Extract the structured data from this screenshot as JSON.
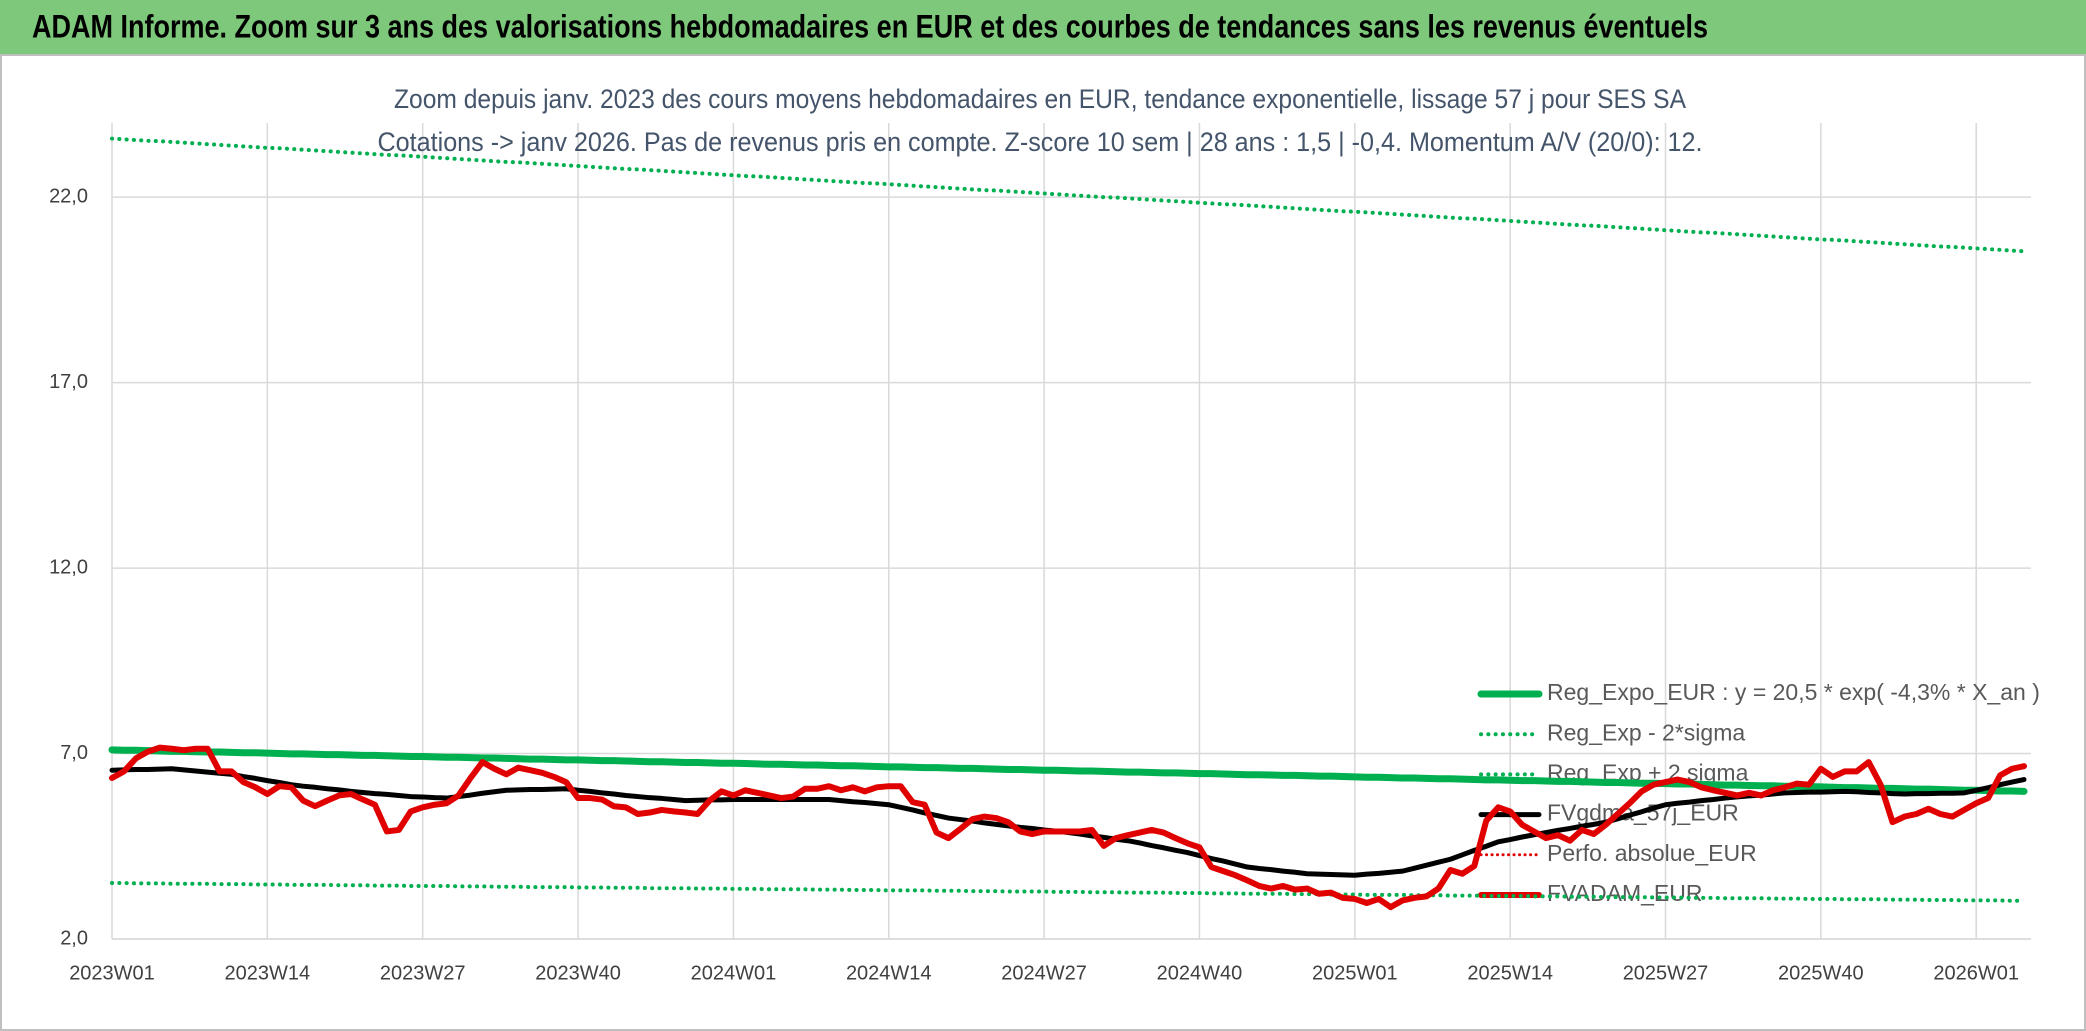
{
  "header": {
    "title": "ADAM Informe. Zoom sur 3 ans des valorisations hebdomadaires en EUR et des courbes de tendances sans les revenus éventuels"
  },
  "chart_data": {
    "type": "line",
    "title": "Zoom depuis janv. 2023 des cours moyens hebdomadaires en EUR, tendance exponentielle, lissage 57 j pour SES SA",
    "subtitle": "Cotations -> janv 2026. Pas de revenus pris en compte. Z-score 10 sem | 28 ans : 1,5 | -0,4. Momentum A/V (20/0): 12.",
    "categories": [
      "2023W01",
      null,
      null,
      null,
      null,
      null,
      null,
      null,
      null,
      null,
      null,
      null,
      null,
      "2023W14",
      null,
      null,
      null,
      null,
      null,
      null,
      null,
      null,
      null,
      null,
      null,
      null,
      "2023W27",
      null,
      null,
      null,
      null,
      null,
      null,
      null,
      null,
      null,
      null,
      null,
      null,
      "2023W40",
      null,
      null,
      null,
      null,
      null,
      null,
      null,
      null,
      null,
      null,
      null,
      null,
      "2024W01",
      null,
      null,
      null,
      null,
      null,
      null,
      null,
      null,
      null,
      null,
      null,
      null,
      "2024W14",
      null,
      null,
      null,
      null,
      null,
      null,
      null,
      null,
      null,
      null,
      null,
      null,
      "2024W27",
      null,
      null,
      null,
      null,
      null,
      null,
      null,
      null,
      null,
      null,
      null,
      null,
      "2024W40",
      null,
      null,
      null,
      null,
      null,
      null,
      null,
      null,
      null,
      null,
      null,
      null,
      "2025W01",
      null,
      null,
      null,
      null,
      null,
      null,
      null,
      null,
      null,
      null,
      null,
      null,
      "2025W14",
      null,
      null,
      null,
      null,
      null,
      null,
      null,
      null,
      null,
      null,
      null,
      null,
      "2025W27",
      null,
      null,
      null,
      null,
      null,
      null,
      null,
      null,
      null,
      null,
      null,
      null,
      "2025W40",
      null,
      null,
      null,
      null,
      null,
      null,
      null,
      null,
      null,
      null,
      null,
      null,
      "2026W01",
      null,
      null,
      null,
      null
    ],
    "ylim": [
      2,
      24
    ],
    "yticks": [
      {
        "value": 2,
        "label": "2,0"
      },
      {
        "value": 7,
        "label": "7,0"
      },
      {
        "value": 12,
        "label": "12,0"
      },
      {
        "value": 17,
        "label": "17,0"
      },
      {
        "value": 22,
        "label": "22,0"
      }
    ],
    "grid": true,
    "legend": "lower right",
    "series": [
      {
        "name": "Reg_Expo_EUR : y = 20,5 * exp( -4,3% *  X_an )",
        "color": "#00b050",
        "style": "solid",
        "width": 7,
        "values": [
          7.1,
          7.09,
          7.09,
          7.08,
          7.07,
          7.06,
          7.06,
          7.05,
          7.04,
          7.04,
          7.03,
          7.02,
          7.02,
          7.01,
          7.0,
          6.99,
          6.99,
          6.98,
          6.97,
          6.97,
          6.96,
          6.95,
          6.95,
          6.94,
          6.93,
          6.92,
          6.92,
          6.91,
          6.9,
          6.9,
          6.89,
          6.88,
          6.88,
          6.87,
          6.86,
          6.85,
          6.85,
          6.84,
          6.83,
          6.83,
          6.82,
          6.81,
          6.81,
          6.8,
          6.79,
          6.78,
          6.78,
          6.77,
          6.76,
          6.76,
          6.75,
          6.74,
          6.74,
          6.73,
          6.72,
          6.71,
          6.71,
          6.7,
          6.69,
          6.69,
          6.68,
          6.67,
          6.67,
          6.66,
          6.65,
          6.64,
          6.64,
          6.63,
          6.62,
          6.62,
          6.61,
          6.6,
          6.6,
          6.59,
          6.58,
          6.57,
          6.57,
          6.56,
          6.55,
          6.55,
          6.54,
          6.53,
          6.53,
          6.52,
          6.51,
          6.5,
          6.5,
          6.49,
          6.48,
          6.48,
          6.47,
          6.46,
          6.46,
          6.45,
          6.44,
          6.43,
          6.43,
          6.42,
          6.41,
          6.41,
          6.4,
          6.39,
          6.39,
          6.38,
          6.37,
          6.36,
          6.36,
          6.35,
          6.34,
          6.34,
          6.33,
          6.32,
          6.32,
          6.31,
          6.3,
          6.29,
          6.29,
          6.28,
          6.27,
          6.27,
          6.26,
          6.25,
          6.25,
          6.24,
          6.23,
          6.22,
          6.22,
          6.21,
          6.2,
          6.2,
          6.19,
          6.18,
          6.18,
          6.17,
          6.16,
          6.15,
          6.15,
          6.14,
          6.13,
          6.13,
          6.12,
          6.11,
          6.11,
          6.1,
          6.09,
          6.08,
          6.08,
          6.07,
          6.06,
          6.06,
          6.05,
          6.04,
          6.04,
          6.03,
          6.02,
          6.01,
          6.01,
          6.0,
          5.99,
          5.99,
          5.98
        ]
      },
      {
        "name": "Reg_Exp - 2*sigma",
        "color": "#00b050",
        "style": "dotted",
        "width": 4,
        "values": [
          3.51,
          3.51,
          3.5,
          3.5,
          3.5,
          3.49,
          3.49,
          3.49,
          3.49,
          3.48,
          3.48,
          3.48,
          3.47,
          3.47,
          3.47,
          3.46,
          3.46,
          3.46,
          3.46,
          3.45,
          3.45,
          3.45,
          3.44,
          3.44,
          3.44,
          3.43,
          3.43,
          3.43,
          3.43,
          3.42,
          3.42,
          3.42,
          3.41,
          3.41,
          3.41,
          3.4,
          3.4,
          3.4,
          3.4,
          3.39,
          3.39,
          3.39,
          3.38,
          3.38,
          3.38,
          3.37,
          3.37,
          3.37,
          3.37,
          3.36,
          3.36,
          3.36,
          3.35,
          3.35,
          3.35,
          3.34,
          3.34,
          3.34,
          3.34,
          3.33,
          3.33,
          3.33,
          3.32,
          3.32,
          3.32,
          3.31,
          3.31,
          3.31,
          3.31,
          3.3,
          3.3,
          3.3,
          3.29,
          3.29,
          3.29,
          3.28,
          3.28,
          3.28,
          3.28,
          3.27,
          3.27,
          3.27,
          3.26,
          3.26,
          3.26,
          3.25,
          3.25,
          3.25,
          3.25,
          3.24,
          3.24,
          3.24,
          3.23,
          3.23,
          3.23,
          3.22,
          3.22,
          3.22,
          3.22,
          3.21,
          3.21,
          3.21,
          3.2,
          3.2,
          3.2,
          3.19,
          3.19,
          3.19,
          3.19,
          3.18,
          3.18,
          3.18,
          3.17,
          3.17,
          3.17,
          3.16,
          3.16,
          3.16,
          3.16,
          3.15,
          3.15,
          3.15,
          3.14,
          3.14,
          3.14,
          3.13,
          3.13,
          3.13,
          3.13,
          3.12,
          3.12,
          3.12,
          3.11,
          3.11,
          3.11,
          3.1,
          3.1,
          3.1,
          3.1,
          3.09,
          3.09,
          3.09,
          3.08,
          3.08,
          3.08,
          3.07,
          3.07,
          3.07,
          3.07,
          3.06,
          3.06,
          3.06,
          3.05,
          3.05,
          3.05,
          3.04,
          3.04,
          3.04,
          3.04,
          3.03,
          3.03
        ]
      },
      {
        "name": "Reg_Exp + 2 sigma",
        "color": "#00b050",
        "style": "dotted",
        "width": 4,
        "values": [
          23.58,
          23.56,
          23.54,
          23.52,
          23.51,
          23.49,
          23.47,
          23.45,
          23.43,
          23.41,
          23.39,
          23.37,
          23.35,
          23.33,
          23.32,
          23.3,
          23.28,
          23.26,
          23.24,
          23.22,
          23.2,
          23.18,
          23.16,
          23.14,
          23.13,
          23.11,
          23.09,
          23.07,
          23.05,
          23.03,
          23.01,
          22.99,
          22.97,
          22.95,
          22.94,
          22.92,
          22.9,
          22.88,
          22.86,
          22.84,
          22.82,
          22.8,
          22.78,
          22.76,
          22.75,
          22.73,
          22.71,
          22.69,
          22.67,
          22.65,
          22.63,
          22.61,
          22.59,
          22.57,
          22.56,
          22.54,
          22.52,
          22.5,
          22.48,
          22.46,
          22.44,
          22.42,
          22.4,
          22.38,
          22.37,
          22.35,
          22.33,
          22.31,
          22.29,
          22.27,
          22.25,
          22.23,
          22.21,
          22.19,
          22.18,
          22.16,
          22.14,
          22.12,
          22.1,
          22.08,
          22.06,
          22.04,
          22.02,
          22.0,
          21.99,
          21.97,
          21.95,
          21.93,
          21.91,
          21.89,
          21.87,
          21.85,
          21.83,
          21.81,
          21.8,
          21.78,
          21.76,
          21.74,
          21.72,
          21.7,
          21.68,
          21.66,
          21.64,
          21.62,
          21.61,
          21.59,
          21.57,
          21.55,
          21.53,
          21.51,
          21.49,
          21.47,
          21.45,
          21.43,
          21.42,
          21.4,
          21.38,
          21.36,
          21.34,
          21.32,
          21.3,
          21.28,
          21.26,
          21.24,
          21.23,
          21.21,
          21.19,
          21.17,
          21.15,
          21.13,
          21.11,
          21.09,
          21.07,
          21.05,
          21.04,
          21.02,
          21.0,
          20.98,
          20.96,
          20.94,
          20.92,
          20.9,
          20.88,
          20.86,
          20.85,
          20.83,
          20.81,
          20.79,
          20.77,
          20.75,
          20.73,
          20.71,
          20.69,
          20.67,
          20.66,
          20.64,
          20.62,
          20.6,
          20.58,
          20.56,
          20.54
        ]
      },
      {
        "name": "FVgdma_57j_EUR",
        "color": "#000000",
        "style": "solid",
        "width": 5,
        "values": [
          6.55,
          6.56,
          6.57,
          6.57,
          6.58,
          6.59,
          6.56,
          6.53,
          6.5,
          6.47,
          6.44,
          6.38,
          6.33,
          6.27,
          6.22,
          6.16,
          6.12,
          6.09,
          6.05,
          6.02,
          5.98,
          5.95,
          5.92,
          5.9,
          5.87,
          5.84,
          5.83,
          5.81,
          5.8,
          5.84,
          5.88,
          5.93,
          5.97,
          6.01,
          6.02,
          6.03,
          6.03,
          6.04,
          6.05,
          6.01,
          5.98,
          5.94,
          5.91,
          5.87,
          5.84,
          5.81,
          5.79,
          5.76,
          5.73,
          5.74,
          5.75,
          5.75,
          5.76,
          5.76,
          5.76,
          5.76,
          5.76,
          5.76,
          5.76,
          5.76,
          5.76,
          5.73,
          5.7,
          5.68,
          5.65,
          5.62,
          5.55,
          5.48,
          5.4,
          5.33,
          5.26,
          5.22,
          5.18,
          5.13,
          5.09,
          5.05,
          5.01,
          4.98,
          4.94,
          4.91,
          4.87,
          4.83,
          4.78,
          4.74,
          4.69,
          4.65,
          4.59,
          4.52,
          4.46,
          4.39,
          4.33,
          4.25,
          4.17,
          4.1,
          4.02,
          3.94,
          3.9,
          3.87,
          3.83,
          3.8,
          3.76,
          3.75,
          3.74,
          3.73,
          3.72,
          3.75,
          3.77,
          3.8,
          3.83,
          3.91,
          3.99,
          4.07,
          4.15,
          4.27,
          4.39,
          4.5,
          4.62,
          4.68,
          4.75,
          4.81,
          4.87,
          4.93,
          4.98,
          5.04,
          5.09,
          5.15,
          5.24,
          5.34,
          5.43,
          5.53,
          5.62,
          5.66,
          5.69,
          5.73,
          5.76,
          5.8,
          5.83,
          5.86,
          5.88,
          5.91,
          5.94,
          5.95,
          5.96,
          5.96,
          5.97,
          5.98,
          5.97,
          5.95,
          5.94,
          5.92,
          5.91,
          5.92,
          5.92,
          5.93,
          5.93,
          5.94,
          6.01,
          6.08,
          6.16,
          6.23,
          6.3
        ]
      },
      {
        "name": "Perfo. absolue_EUR",
        "color": "#e00000",
        "style": "dotted",
        "width": 3,
        "values": [
          null,
          null,
          null,
          null,
          null,
          null,
          null,
          null,
          null,
          null,
          null,
          null,
          null,
          null,
          null,
          null,
          null,
          null,
          null,
          null,
          null,
          null,
          null,
          null,
          null,
          null,
          null,
          null,
          null,
          null,
          null,
          null,
          null,
          null,
          null,
          null,
          null,
          null,
          null,
          null,
          null,
          null,
          null,
          null,
          null,
          null,
          null,
          null,
          null,
          null,
          null,
          null,
          null,
          null,
          null,
          null,
          null,
          null,
          null,
          null,
          null,
          null,
          null,
          null,
          null,
          null,
          null,
          null,
          null,
          null,
          null,
          null,
          null,
          null,
          null,
          null,
          null,
          null,
          null,
          null,
          null,
          null,
          null,
          null,
          null,
          null,
          null,
          null,
          null,
          null,
          null,
          null,
          null,
          null,
          null,
          null,
          null,
          null,
          null,
          null,
          null,
          null,
          null,
          null,
          null,
          null,
          null,
          null,
          null,
          null,
          null,
          null,
          null,
          null,
          null,
          null,
          null,
          null,
          null,
          null,
          null,
          null,
          null,
          null,
          null,
          null,
          null,
          null,
          null,
          null,
          null,
          null,
          null,
          null,
          null,
          null,
          null,
          null,
          null,
          null,
          null,
          null,
          null,
          null,
          null,
          null,
          null,
          null,
          null,
          null,
          null,
          null,
          null,
          null,
          null,
          null,
          null,
          null,
          null,
          null,
          null
        ]
      },
      {
        "name": "FVADAM_EUR",
        "color": "#e00000",
        "style": "solid",
        "width": 6,
        "values": [
          6.34,
          6.52,
          6.87,
          7.05,
          7.16,
          7.13,
          7.09,
          7.13,
          7.13,
          6.52,
          6.52,
          6.23,
          6.09,
          5.91,
          6.12,
          6.09,
          5.73,
          5.58,
          5.73,
          5.87,
          5.91,
          5.76,
          5.62,
          4.9,
          4.94,
          5.44,
          5.55,
          5.62,
          5.66,
          5.87,
          6.34,
          6.77,
          6.59,
          6.44,
          6.62,
          6.55,
          6.48,
          6.37,
          6.23,
          5.8,
          5.8,
          5.76,
          5.58,
          5.55,
          5.37,
          5.41,
          5.48,
          5.44,
          5.41,
          5.37,
          5.73,
          5.98,
          5.87,
          6.01,
          5.94,
          5.87,
          5.8,
          5.84,
          6.05,
          6.05,
          6.12,
          6.01,
          6.09,
          5.98,
          6.09,
          6.12,
          6.12,
          5.69,
          5.62,
          4.87,
          4.72,
          4.97,
          5.23,
          5.3,
          5.26,
          5.15,
          4.9,
          4.83,
          4.9,
          4.9,
          4.9,
          4.9,
          4.94,
          4.51,
          4.72,
          4.8,
          4.87,
          4.94,
          4.87,
          4.72,
          4.58,
          4.47,
          3.94,
          3.83,
          3.72,
          3.58,
          3.43,
          3.36,
          3.43,
          3.33,
          3.36,
          3.22,
          3.25,
          3.11,
          3.08,
          2.97,
          3.08,
          2.86,
          3.04,
          3.11,
          3.15,
          3.36,
          3.86,
          3.76,
          3.97,
          5.19,
          5.55,
          5.44,
          5.08,
          4.9,
          4.72,
          4.8,
          4.65,
          4.94,
          4.83,
          5.08,
          5.37,
          5.66,
          5.98,
          6.16,
          6.23,
          6.3,
          6.23,
          6.09,
          6.01,
          5.94,
          5.87,
          5.94,
          5.87,
          6.01,
          6.09,
          6.19,
          6.16,
          6.59,
          6.37,
          6.52,
          6.52,
          6.77,
          6.16,
          5.15,
          5.3,
          5.37,
          5.51,
          5.37,
          5.3,
          5.48,
          5.66,
          5.8,
          6.41,
          6.59,
          6.66
        ]
      }
    ]
  }
}
